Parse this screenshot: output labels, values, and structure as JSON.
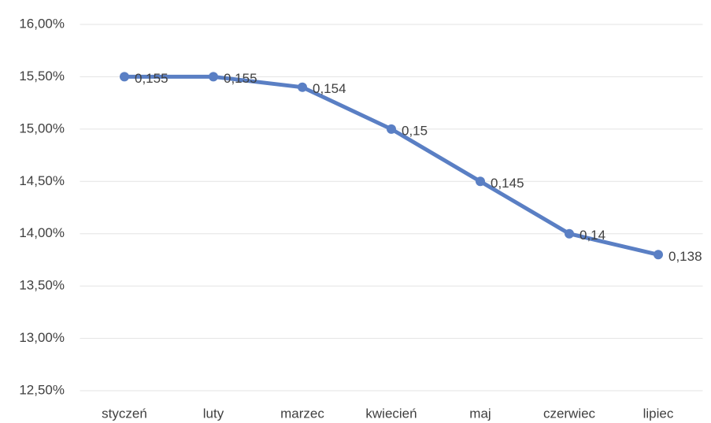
{
  "chart_data": {
    "type": "line",
    "categories": [
      "styczeń",
      "luty",
      "marzec",
      "kwiecień",
      "maj",
      "czerwiec",
      "lipiec"
    ],
    "series": [
      {
        "name": "",
        "color": "#5a7fc4",
        "values": [
          15.5,
          15.5,
          15.4,
          15.0,
          14.5,
          14.0,
          13.8
        ],
        "value_labels": [
          "0,155",
          "0,155",
          "0,154",
          "0,15",
          "0,145",
          "0,14",
          "0,138"
        ]
      }
    ],
    "ylim": [
      12.5,
      16
    ],
    "yticks": [
      {
        "value": 12.5,
        "label": "12,50%"
      },
      {
        "value": 13,
        "label": "13,00%"
      },
      {
        "value": 13.5,
        "label": "13,50%"
      },
      {
        "value": 14,
        "label": "14,00%"
      },
      {
        "value": 14.5,
        "label": "14,50%"
      },
      {
        "value": 15,
        "label": "15,00%"
      },
      {
        "value": 15.5,
        "label": "15,50%"
      },
      {
        "value": 16,
        "label": "16,00%"
      }
    ],
    "grid": true
  }
}
